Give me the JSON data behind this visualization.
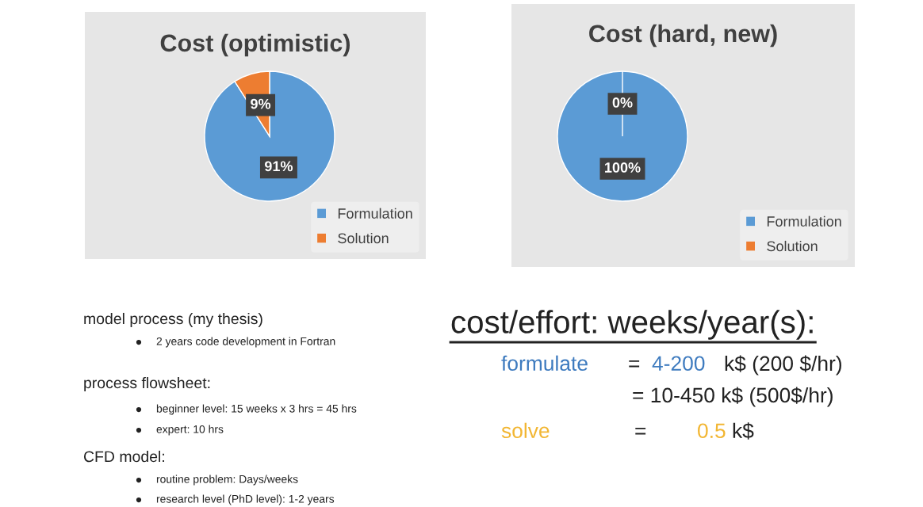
{
  "chart_data": [
    {
      "type": "pie",
      "title": "Cost (optimistic)",
      "categories": [
        "Formulation",
        "Solution"
      ],
      "values": [
        91,
        9
      ],
      "value_labels": [
        "91%",
        "9%"
      ],
      "colors": [
        "#5b9bd5",
        "#ed7d31"
      ],
      "legend": "bottom right"
    },
    {
      "type": "pie",
      "title": "Cost (hard, new)",
      "categories": [
        "Formulation",
        "Solution"
      ],
      "values": [
        100,
        0
      ],
      "value_labels": [
        "100%",
        "0%"
      ],
      "colors": [
        "#5b9bd5",
        "#ed7d31"
      ],
      "legend": "bottom right"
    },
    {
      "type": "other",
      "annotations": [
        "model process (my thesis)",
        "2 years code development in Fortran",
        "process flowsheet:",
        "beginner level: 15 weeks x 3 hrs = 45 hrs",
        "expert: 10 hrs",
        "CFD model:",
        "routine problem: Days/weeks",
        "research level (PhD level): 1-2 years",
        "cost/effort: weeks/year(s):",
        "formulate",
        "=",
        "4-200",
        "k$ (200 $/hr)",
        "= 10-450 k$ (500$/hr)",
        "solve",
        "=",
        "0.5",
        "k$"
      ]
    }
  ]
}
